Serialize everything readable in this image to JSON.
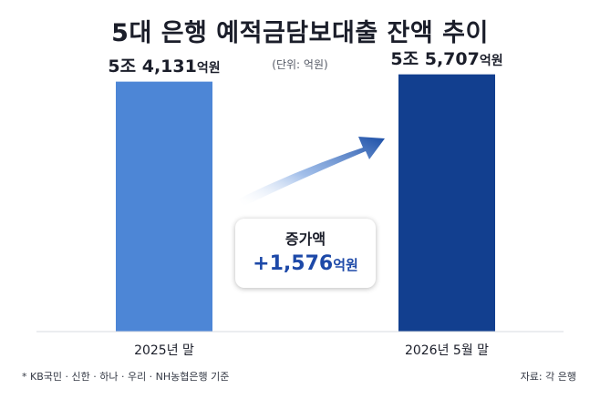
{
  "header": {
    "title": "5대 은행 예적금담보대출 잔액 추이",
    "unit_note": "(단위: 억원)"
  },
  "chart_data": {
    "type": "bar",
    "categories": [
      "2025년 말",
      "2026년 5월 말"
    ],
    "values": [
      54131,
      55707
    ],
    "value_labels": [
      {
        "amount": "5조 4,131",
        "unit": "억원"
      },
      {
        "amount": "5조 5,707",
        "unit": "억원"
      }
    ],
    "colors": [
      "#4d86d6",
      "#123f8f"
    ],
    "ylim": [
      0,
      58000
    ],
    "grid": false,
    "legend": "none"
  },
  "callout": {
    "title": "증가액",
    "value": "+1,576",
    "unit": "억원",
    "color": "#1d49a8"
  },
  "footer": {
    "note": "* KB국민 · 신한 · 하나 · 우리 · NH농협은행 기준",
    "source": "자료: 각 은행"
  }
}
